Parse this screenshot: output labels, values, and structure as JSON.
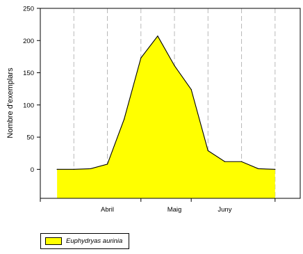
{
  "chart_data": {
    "type": "area",
    "xlabel": "",
    "ylabel": "Nombre d'exemplars",
    "ylim": [
      -45,
      250
    ],
    "yticks": [
      0,
      50,
      100,
      150,
      200,
      250
    ],
    "xlim": [
      -1,
      14.5
    ],
    "x": [
      0,
      1,
      2,
      3,
      4,
      5,
      6,
      7,
      8,
      9,
      10,
      11,
      12,
      13
    ],
    "month_labels": [
      {
        "label": "Abril",
        "x": 3
      },
      {
        "label": "Maig",
        "x": 7
      },
      {
        "label": "Juny",
        "x": 10
      }
    ],
    "x_minor_ticks": [
      -1,
      5,
      8,
      13
    ],
    "dashed_gridlines_x": [
      1,
      3,
      5,
      7,
      9,
      11,
      13
    ],
    "grid": "vertical-dashed",
    "legend_position": "bottom-left",
    "series": [
      {
        "name": "Euphydryas aurinia",
        "color": "#ffff00",
        "values": [
          0,
          0,
          1,
          8,
          78,
          173,
          207,
          161,
          124,
          29,
          12,
          12,
          1,
          0
        ]
      }
    ]
  },
  "legend": {
    "label": "Euphydryas aurinia"
  }
}
